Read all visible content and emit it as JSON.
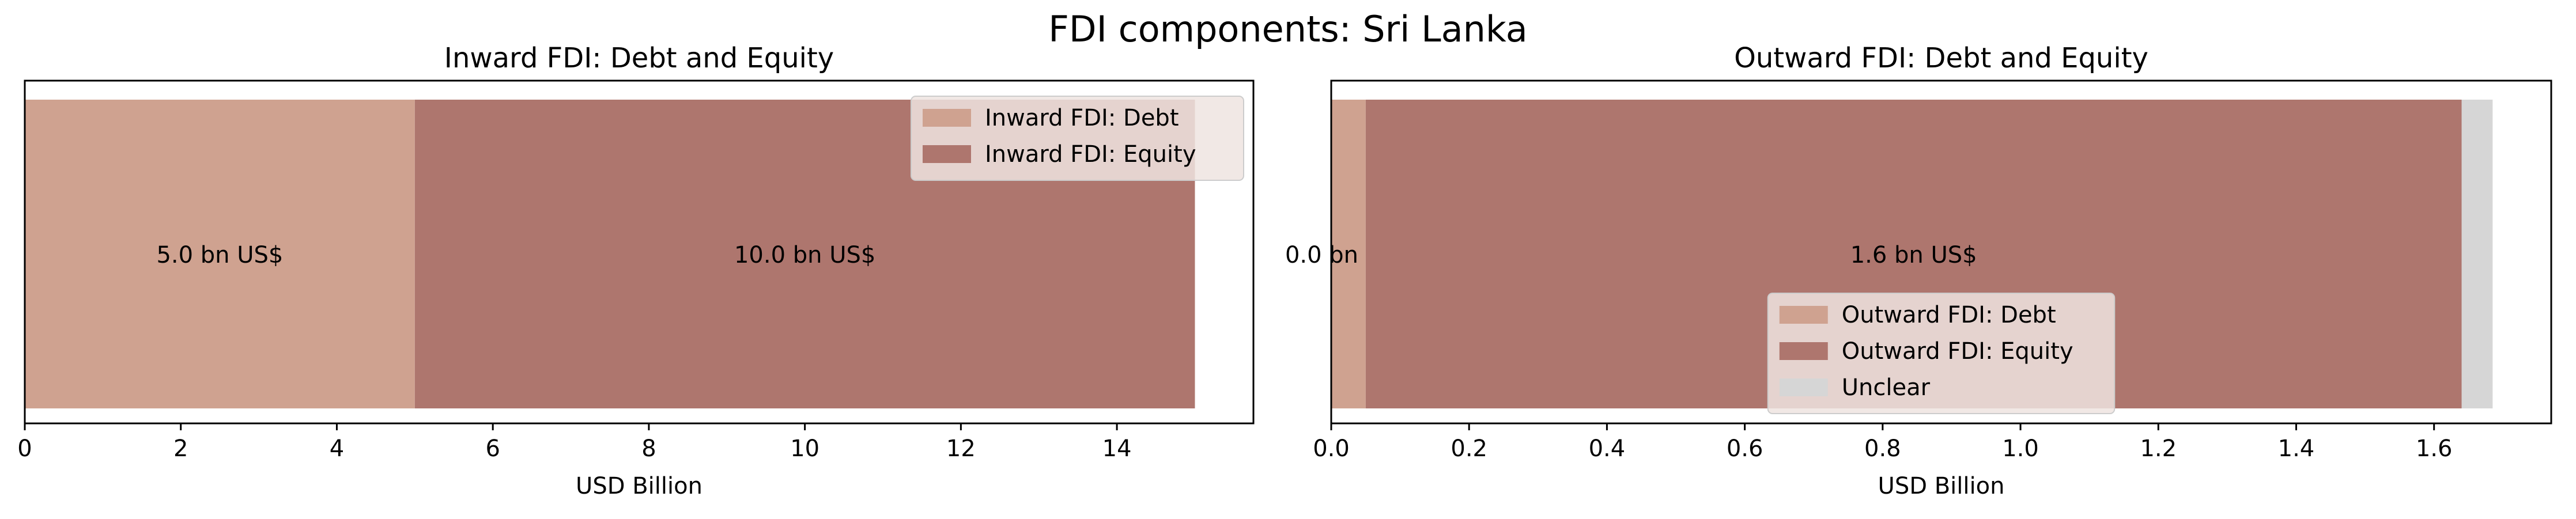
{
  "figure": {
    "suptitle": "FDI components: Sri Lanka"
  },
  "colors": {
    "debt": "#cfa290",
    "equity": "#ae766e",
    "unclear": "#d6d6d6",
    "legend_bg": "#efe4e1",
    "axis": "#000000"
  },
  "chart_data": [
    {
      "type": "bar",
      "orientation": "horizontal-stacked",
      "title": "Inward FDI: Debt and Equity",
      "xlabel": "USD Billion",
      "ylabel": "",
      "xlim": [
        0,
        15.75
      ],
      "xticks": [
        0,
        2,
        4,
        6,
        8,
        10,
        12,
        14
      ],
      "xtick_labels": [
        "0",
        "2",
        "4",
        "6",
        "8",
        "10",
        "12",
        "14"
      ],
      "legend_position": "top-right",
      "series": [
        {
          "name": "Inward FDI: Debt",
          "color_key": "debt",
          "value": 5.0,
          "label": "5.0 bn US$"
        },
        {
          "name": "Inward FDI: Equity",
          "color_key": "equity",
          "value": 10.0,
          "label": "10.0 bn US$"
        }
      ]
    },
    {
      "type": "bar",
      "orientation": "horizontal-stacked",
      "title": "Outward FDI: Debt and Equity",
      "xlabel": "USD Billion",
      "ylabel": "",
      "xlim": [
        0,
        1.77
      ],
      "xticks": [
        0.0,
        0.2,
        0.4,
        0.6,
        0.8,
        1.0,
        1.2,
        1.4,
        1.6
      ],
      "xtick_labels": [
        "0.0",
        "0.2",
        "0.4",
        "0.6",
        "0.8",
        "1.0",
        "1.2",
        "1.4",
        "1.6"
      ],
      "legend_position": "bottom-center",
      "series": [
        {
          "name": "Outward FDI: Debt",
          "color_key": "debt",
          "value": 0.05,
          "label": "0.0 bn US$"
        },
        {
          "name": "Outward FDI: Equity",
          "color_key": "equity",
          "value": 1.59,
          "label": "1.6 bn US$"
        },
        {
          "name": "Unclear",
          "color_key": "unclear",
          "value": 0.045,
          "label": ""
        }
      ]
    }
  ]
}
